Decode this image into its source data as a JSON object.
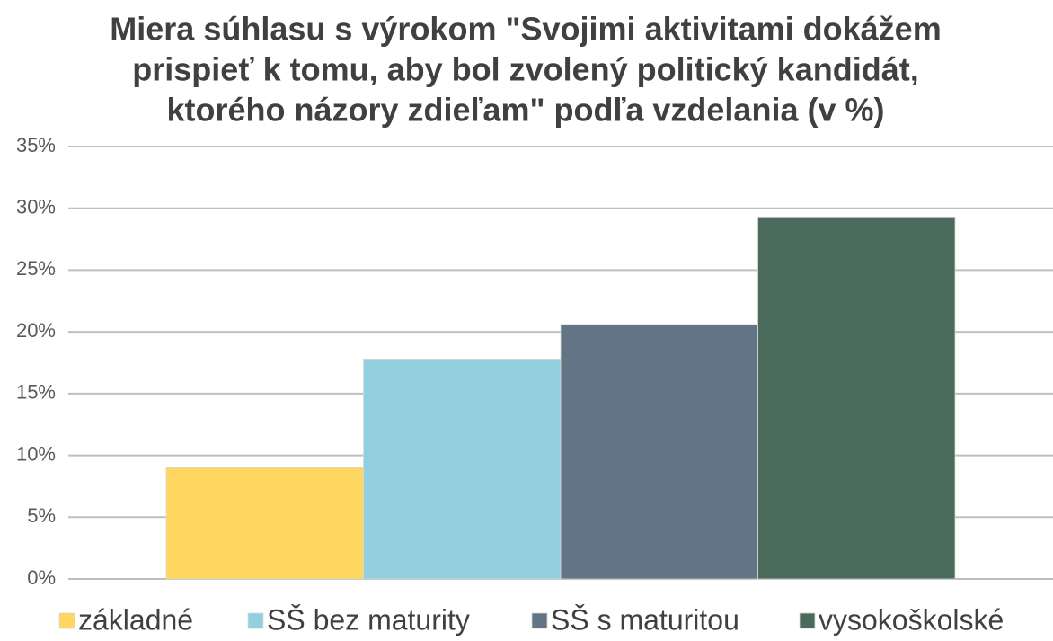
{
  "chart_data": {
    "type": "bar",
    "title": [
      "Miera súhlasu s výrokom \"Svojimi aktivitami dokážem",
      "prispieť k tomu, aby bol zvolený politický kandidát,",
      "ktorého názory zdieľam\" podľa vzdelania (v %)"
    ],
    "categories": [
      null
    ],
    "series": [
      {
        "name": "základné",
        "color": "#fed660",
        "values": [
          9
        ]
      },
      {
        "name": "SŠ bez maturity",
        "color": "#93d0dd",
        "values": [
          17.8
        ]
      },
      {
        "name": "SŠ s maturitou",
        "color": "#637487",
        "values": [
          20.6
        ]
      },
      {
        "name": "vysokoškolské",
        "color": "#4a6b5c",
        "values": [
          29.3
        ]
      }
    ],
    "ylim": [
      0,
      35
    ],
    "yticks": [
      {
        "value": 0,
        "label": "0%"
      },
      {
        "value": 5,
        "label": "5%"
      },
      {
        "value": 10,
        "label": "10%"
      },
      {
        "value": 15,
        "label": "15%"
      },
      {
        "value": 20,
        "label": "20%"
      },
      {
        "value": 25,
        "label": "25%"
      },
      {
        "value": 30,
        "label": "30%"
      },
      {
        "value": 35,
        "label": "35%"
      }
    ],
    "grid": true,
    "legend": "bottom"
  }
}
